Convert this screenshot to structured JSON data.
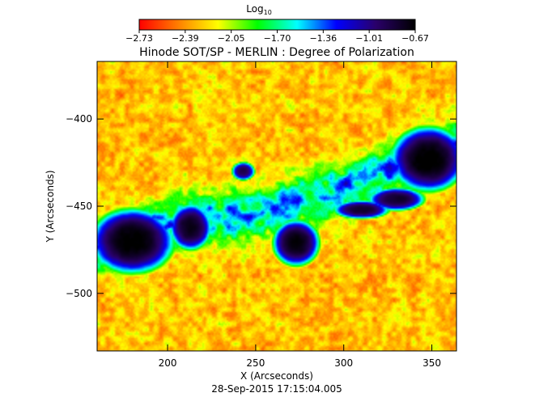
{
  "chart_data": {
    "type": "heatmap",
    "title": "Hinode SOT/SP - MERLIN : Degree of Polarization",
    "colorbar": {
      "label_main": "Log",
      "label_sub": "10",
      "ticks": [
        "-2.73",
        "-2.39",
        "-2.05",
        "-1.70",
        "-1.36",
        "-1.01",
        "-0.67"
      ],
      "range": [
        -2.73,
        -0.67
      ],
      "colormap": [
        "#ff0000",
        "#ff8000",
        "#ffff00",
        "#00ff00",
        "#00ffff",
        "#0000ff",
        "#2a006a",
        "#000000"
      ]
    },
    "xlabel": "X (Arcseconds)",
    "ylabel": "Y (Arcseconds)",
    "xlim": [
      160,
      364
    ],
    "ylim": [
      -533,
      -367
    ],
    "xticks": [
      200,
      250,
      300,
      350
    ],
    "yticks": [
      -400,
      -450,
      -500
    ],
    "timestamp": "28-Sep-2015 17:15:04.005",
    "features": {
      "spots": [
        {
          "x": 180,
          "y": -470,
          "rx": 18,
          "ry": 14,
          "value": -0.72
        },
        {
          "x": 213,
          "y": -462,
          "rx": 9,
          "ry": 10,
          "value": -0.78
        },
        {
          "x": 273,
          "y": -471,
          "rx": 10,
          "ry": 10,
          "value": -0.75
        },
        {
          "x": 348,
          "y": -423,
          "rx": 16,
          "ry": 14,
          "value": -0.7
        },
        {
          "x": 310,
          "y": -452,
          "rx": 12,
          "ry": 4,
          "value": -0.85
        },
        {
          "x": 330,
          "y": -446,
          "rx": 12,
          "ry": 5,
          "value": -0.85
        },
        {
          "x": 243,
          "y": -430,
          "rx": 5,
          "ry": 4,
          "value": -0.95
        }
      ],
      "band": [
        [
          160,
          -475
        ],
        [
          200,
          -460
        ],
        [
          250,
          -455
        ],
        [
          300,
          -440
        ],
        [
          364,
          -415
        ]
      ]
    }
  }
}
